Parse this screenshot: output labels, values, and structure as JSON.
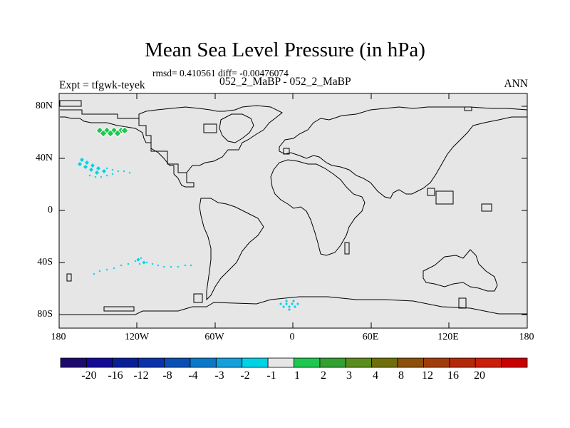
{
  "title": "Mean Sea Level Pressure (in hPa)",
  "stats": "rmsd= 0.410561 diff= -0.00476074",
  "experiment": "Expt = tfgwk-teyek",
  "difference_label": "052_2_MaBP - 052_2_MaBP",
  "season": "ANN",
  "map": {
    "lat_labels": [
      "80N",
      "40N",
      "0",
      "40S",
      "80S"
    ],
    "lon_labels": [
      "180",
      "120W",
      "60W",
      "0",
      "60E",
      "120E",
      "180"
    ],
    "background_color": "#e6e6e6",
    "coastline_color": "#000000"
  },
  "colorbar": {
    "labels": [
      "-20",
      "-16",
      "-12",
      "-8",
      "-4",
      "-3",
      "-2",
      "-1",
      "1",
      "2",
      "3",
      "4",
      "8",
      "12",
      "16",
      "20"
    ],
    "colors": [
      "#1e0a6e",
      "#140a96",
      "#0a1e96",
      "#0a32aa",
      "#0a50b4",
      "#0a78c8",
      "#14a0dc",
      "#00d2e6",
      "#e6e6e6",
      "#1ec850",
      "#32a032",
      "#5a8c1e",
      "#6e6e0a",
      "#8c500a",
      "#a03c0a",
      "#b4280a",
      "#c81e0a",
      "#c80000"
    ]
  }
}
